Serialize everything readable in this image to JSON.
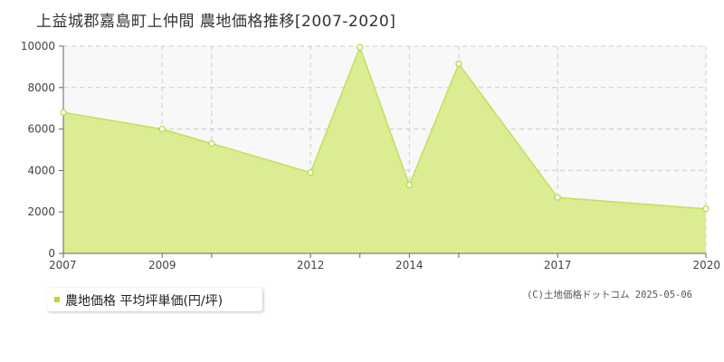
{
  "title": "上益城郡嘉島町上仲間 農地価格推移[2007-2020]",
  "legend": {
    "label": "農地価格 平均坪単価(円/坪)"
  },
  "credit": "(C)土地価格ドットコム 2025-05-06",
  "colors": {
    "fill": "#dbec92",
    "line": "#c2e05a",
    "marker": "#b5d93a",
    "plot_bg": "#f8f8f8",
    "grid": "#cccccc"
  },
  "chart_data": {
    "type": "area",
    "title": "上益城郡嘉島町上仲間 農地価格推移[2007-2020]",
    "xlabel": "",
    "ylabel": "",
    "xlim": [
      2007,
      2020
    ],
    "ylim": [
      0,
      10000
    ],
    "yticks": [
      0,
      2000,
      4000,
      6000,
      8000,
      10000
    ],
    "xtick_labels": [
      "2007",
      "2009",
      "2012",
      "2014",
      "2017",
      "2020"
    ],
    "grid": true,
    "legend_position": "bottom-left",
    "series": [
      {
        "name": "農地価格 平均坪単価(円/坪)",
        "x": [
          2007,
          2009,
          2010,
          2012,
          2013,
          2014,
          2015,
          2017,
          2020
        ],
        "values": [
          6800,
          6000,
          5300,
          3900,
          9950,
          3300,
          9150,
          2700,
          2150
        ]
      }
    ]
  }
}
